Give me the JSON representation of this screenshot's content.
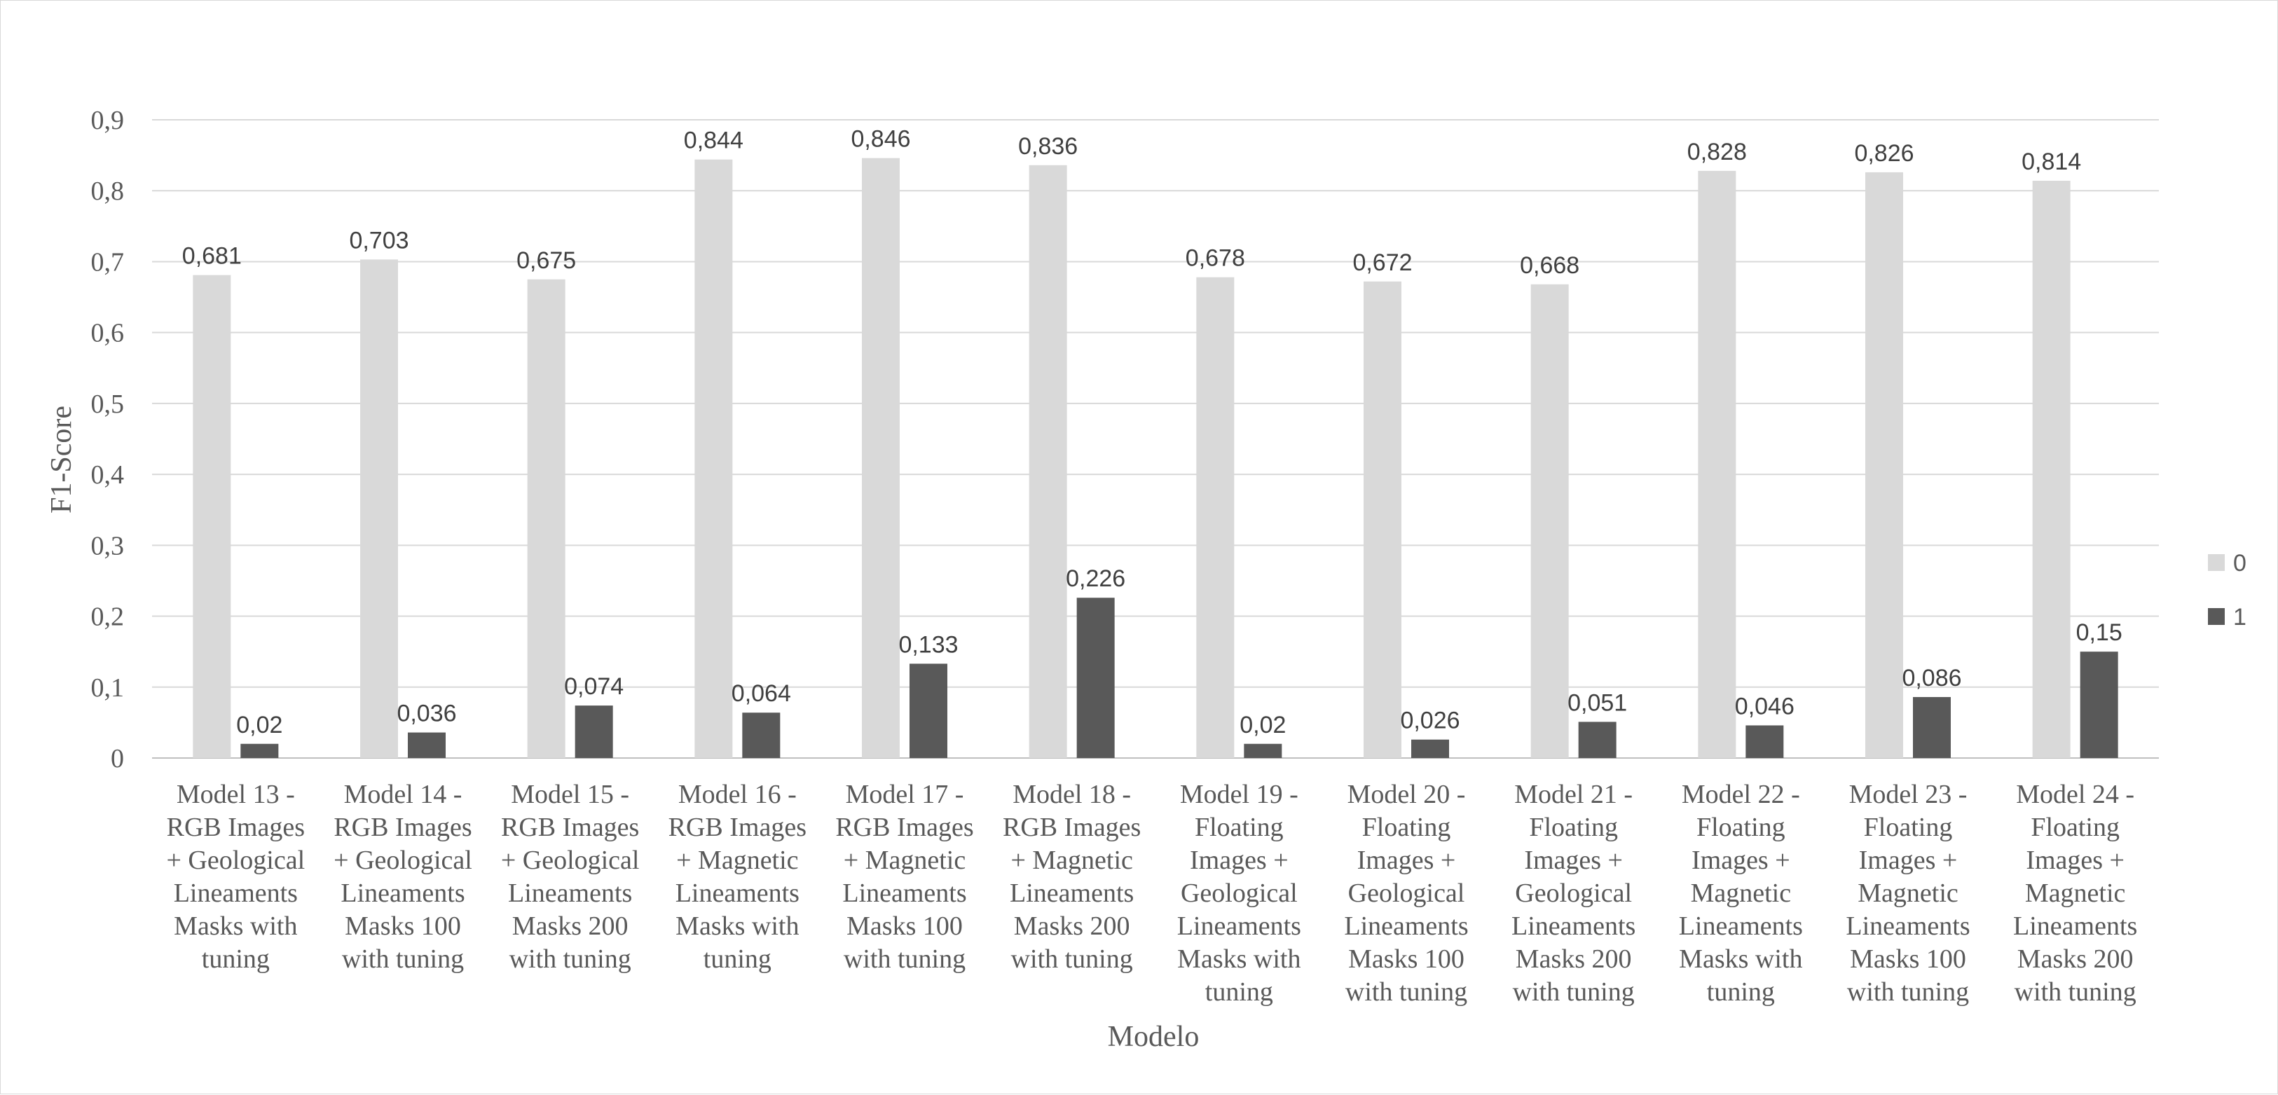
{
  "chart_data": {
    "type": "bar",
    "title": "",
    "xlabel": "Modelo",
    "ylabel": "F1-Score",
    "ylim": [
      0,
      0.9
    ],
    "yticks": [
      "0",
      "0,1",
      "0,2",
      "0,3",
      "0,4",
      "0,5",
      "0,6",
      "0,7",
      "0,8",
      "0,9"
    ],
    "grid": true,
    "legend_position": "right",
    "categories": [
      [
        "Model 13 -",
        "RGB Images",
        "+ Geological",
        "Lineaments",
        "Masks with",
        "tuning"
      ],
      [
        "Model 14 -",
        "RGB Images",
        "+ Geological",
        "Lineaments",
        "Masks 100",
        "with tuning"
      ],
      [
        "Model 15 -",
        "RGB Images",
        "+ Geological",
        "Lineaments",
        "Masks 200",
        "with tuning"
      ],
      [
        "Model 16 -",
        "RGB Images",
        "+ Magnetic",
        "Lineaments",
        "Masks with",
        "tuning"
      ],
      [
        "Model 17 -",
        "RGB Images",
        "+ Magnetic",
        "Lineaments",
        "Masks 100",
        "with tuning"
      ],
      [
        "Model 18 -",
        "RGB Images",
        "+ Magnetic",
        "Lineaments",
        "Masks 200",
        "with tuning"
      ],
      [
        "Model 19 -",
        "Floating",
        "Images +",
        "Geological",
        "Lineaments",
        "Masks with",
        "tuning"
      ],
      [
        "Model 20 -",
        "Floating",
        "Images +",
        "Geological",
        "Lineaments",
        "Masks 100",
        "with tuning"
      ],
      [
        "Model 21 -",
        "Floating",
        "Images +",
        "Geological",
        "Lineaments",
        "Masks 200",
        "with tuning"
      ],
      [
        "Model 22 -",
        "Floating",
        "Images +",
        "Magnetic",
        "Lineaments",
        "Masks with",
        "tuning"
      ],
      [
        "Model 23 -",
        "Floating",
        "Images +",
        "Magnetic",
        "Lineaments",
        "Masks 100",
        "with tuning"
      ],
      [
        "Model 24 -",
        "Floating",
        "Images +",
        "Magnetic",
        "Lineaments",
        "Masks 200",
        "with tuning"
      ]
    ],
    "series": [
      {
        "name": "0",
        "color": "#d9d9d9",
        "values": [
          0.681,
          0.703,
          0.675,
          0.844,
          0.846,
          0.836,
          0.678,
          0.672,
          0.668,
          0.828,
          0.826,
          0.814
        ],
        "labels": [
          "0,681",
          "0,703",
          "0,675",
          "0,844",
          "0,846",
          "0,836",
          "0,678",
          "0,672",
          "0,668",
          "0,828",
          "0,826",
          "0,814"
        ]
      },
      {
        "name": "1",
        "color": "#595959",
        "values": [
          0.02,
          0.036,
          0.074,
          0.064,
          0.133,
          0.226,
          0.02,
          0.026,
          0.051,
          0.046,
          0.086,
          0.15
        ],
        "labels": [
          "0,02",
          "0,036",
          "0,074",
          "0,064",
          "0,133",
          "0,226",
          "0,02",
          "0,026",
          "0,051",
          "0,046",
          "0,086",
          "0,15"
        ]
      }
    ]
  }
}
